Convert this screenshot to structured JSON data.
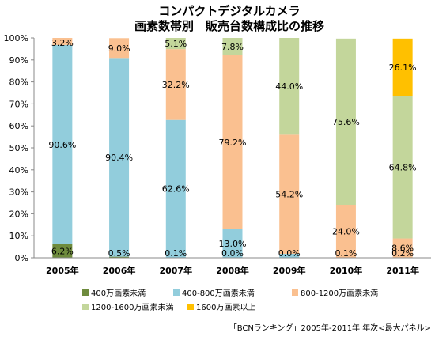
{
  "chart_data": {
    "type": "bar",
    "stacked": true,
    "title": [
      "コンパクトデジタルカメラ",
      "画素数帯別　販売台数構成比の推移"
    ],
    "categories": [
      "2005年",
      "2006年",
      "2007年",
      "2008年",
      "2009年",
      "2010年",
      "2011年"
    ],
    "series": [
      {
        "name": "400万画素未満",
        "color": "#6e8b3d",
        "values": [
          6.2,
          0.5,
          0.1,
          0.0,
          0.0,
          0.1,
          0.2
        ]
      },
      {
        "name": "400-800万画素未満",
        "color": "#92cddc",
        "values": [
          90.6,
          90.4,
          62.6,
          13.0,
          1.8,
          0.0,
          0.0
        ]
      },
      {
        "name": "800-1200万画素未満",
        "color": "#fac090",
        "values": [
          3.2,
          9.0,
          32.2,
          79.2,
          54.2,
          24.0,
          8.6
        ]
      },
      {
        "name": "1200-1600万画素未満",
        "color": "#c3d69b",
        "values": [
          0.0,
          0.0,
          5.1,
          7.8,
          44.0,
          75.6,
          64.8
        ]
      },
      {
        "name": "1600万画素以上",
        "color": "#ffc000",
        "values": [
          0.0,
          0.0,
          0.0,
          0.0,
          0.0,
          0.0,
          26.1
        ]
      }
    ],
    "data_labels": [
      {
        "cat": 0,
        "series": 0,
        "text": "6.2%"
      },
      {
        "cat": 0,
        "series": 1,
        "text": "90.6%"
      },
      {
        "cat": 0,
        "series": 2,
        "text": "3.2%"
      },
      {
        "cat": 1,
        "series": 0,
        "text": "0.5%"
      },
      {
        "cat": 1,
        "series": 1,
        "text": "90.4%"
      },
      {
        "cat": 1,
        "series": 2,
        "text": "9.0%"
      },
      {
        "cat": 2,
        "series": 0,
        "text": "0.1%"
      },
      {
        "cat": 2,
        "series": 1,
        "text": "62.6%"
      },
      {
        "cat": 2,
        "series": 2,
        "text": "32.2%"
      },
      {
        "cat": 2,
        "series": 3,
        "text": "5.1%"
      },
      {
        "cat": 3,
        "series": 0,
        "text": "0.0%"
      },
      {
        "cat": 3,
        "series": 1,
        "text": "13.0%"
      },
      {
        "cat": 3,
        "series": 2,
        "text": "79.2%"
      },
      {
        "cat": 3,
        "series": 3,
        "text": "7.8%"
      },
      {
        "cat": 4,
        "series": 0,
        "text": "0.0%"
      },
      {
        "cat": 4,
        "series": 2,
        "text": "54.2%"
      },
      {
        "cat": 4,
        "series": 3,
        "text": "44.0%"
      },
      {
        "cat": 5,
        "series": 0,
        "text": "0.1%"
      },
      {
        "cat": 5,
        "series": 2,
        "text": "24.0%"
      },
      {
        "cat": 5,
        "series": 3,
        "text": "75.6%"
      },
      {
        "cat": 6,
        "series": 0,
        "text": "0.2%"
      },
      {
        "cat": 6,
        "series": 2,
        "text": "8.6%"
      },
      {
        "cat": 6,
        "series": 3,
        "text": "64.8%"
      },
      {
        "cat": 6,
        "series": 4,
        "text": "26.1%"
      }
    ],
    "ylim": [
      0,
      100
    ],
    "yticks": [
      "0%",
      "10%",
      "20%",
      "30%",
      "40%",
      "50%",
      "60%",
      "70%",
      "80%",
      "90%",
      "100%"
    ],
    "grid": false,
    "legend_position": "bottom",
    "source": "「BCNランキング」2005年-2011年 年次<最大パネル>"
  }
}
